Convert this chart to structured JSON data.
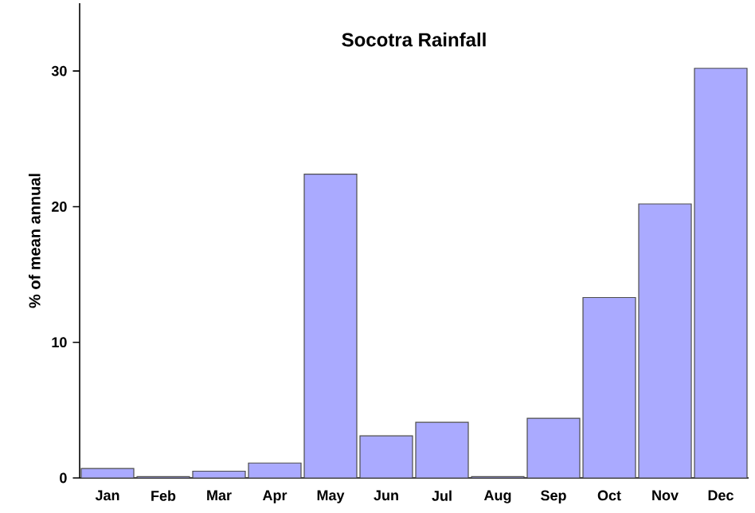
{
  "chart_data": {
    "type": "bar",
    "title": "Socotra Rainfall",
    "ylabel": "% of mean annual",
    "categories": [
      "Jan",
      "Feb",
      "Mar",
      "Apr",
      "May",
      "Jun",
      "Jul",
      "Aug",
      "Sep",
      "Oct",
      "Nov",
      "Dec"
    ],
    "values": [
      0.7,
      0.1,
      0.5,
      1.1,
      22.4,
      3.1,
      4.1,
      0.1,
      4.4,
      13.3,
      20.2,
      30.2
    ],
    "color": "#aaaaff",
    "ylim": [
      0,
      35
    ],
    "yticks": [
      0,
      10,
      20,
      30
    ],
    "grid": false
  }
}
